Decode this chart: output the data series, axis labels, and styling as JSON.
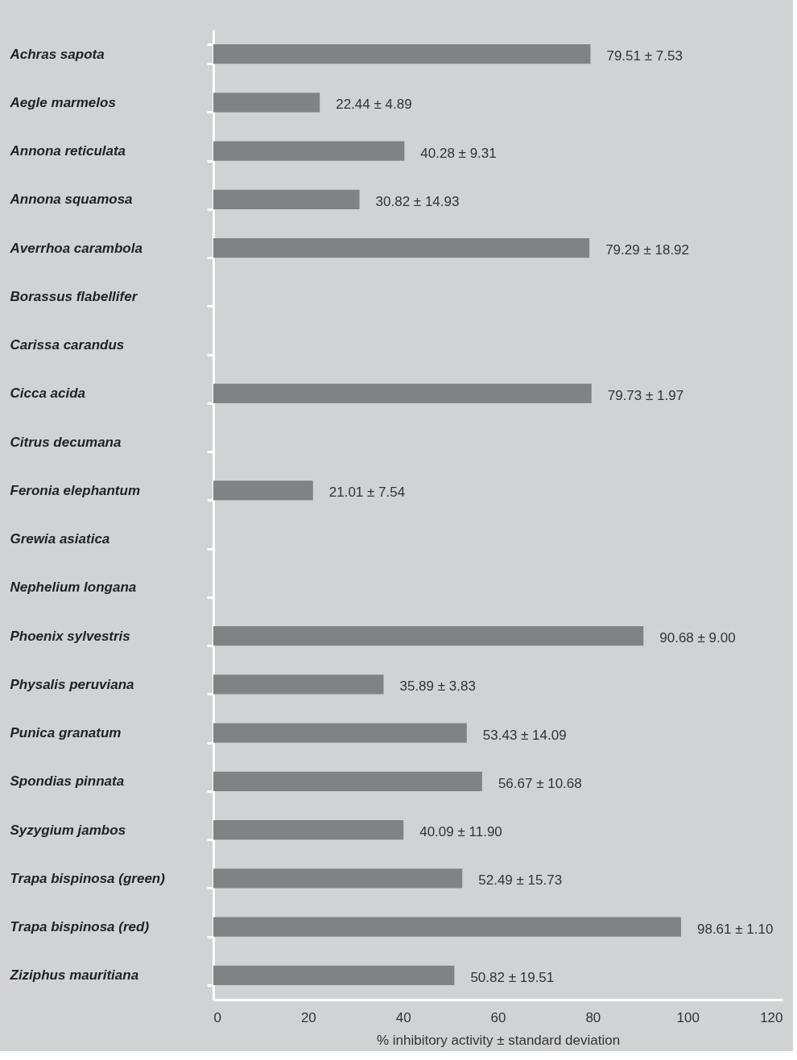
{
  "chart_data": {
    "type": "bar",
    "orientation": "horizontal",
    "xlabel": "% inhibitory activity ± standard deviation",
    "categories": [
      "Achras  sapota",
      "Aegle  marmelos",
      "Annona  reticulata",
      "Annona  squamosa",
      "Averrhoa  carambola",
      "Borassus  flabellifer",
      "Carissa  carandus",
      "Cicca  acida",
      "Citrus  decumana",
      "Feronia  elephantum",
      "Grewia  asiatica",
      "Nephelium  longana",
      "Phoenix  sylvestris",
      "Physalis  peruviana",
      "Punica   granatum",
      "Spondias  pinnata",
      "Syzygium  jambos",
      "Trapa  bispinosa  (green)",
      "Trapa  bispinosa  (red)",
      "Ziziphus  mauritiana"
    ],
    "values": [
      79.51,
      22.44,
      40.28,
      30.82,
      79.29,
      null,
      null,
      79.73,
      null,
      21.01,
      null,
      null,
      90.68,
      35.89,
      53.43,
      56.67,
      40.09,
      52.49,
      98.61,
      50.82
    ],
    "value_labels": [
      "79.51 ± 7.53",
      "22.44 ± 4.89",
      "40.28 ± 9.31",
      "30.82 ± 14.93",
      "79.29 ± 18.92",
      null,
      null,
      "79.73 ± 1.97",
      null,
      "21.01 ± 7.54",
      null,
      null,
      "90.68 ± 9.00",
      "35.89 ± 3.83",
      "53.43 ± 14.09",
      "56.67 ± 10.68",
      "40.09 ± 11.90",
      "52.49 ± 15.73",
      "98.61 ± 1.10",
      "50.82 ± 19.51"
    ],
    "color": "#808285",
    "xlim": [
      0,
      120
    ],
    "xticks": [
      0,
      20,
      40,
      60,
      80,
      100,
      120
    ],
    "grid": false
  }
}
